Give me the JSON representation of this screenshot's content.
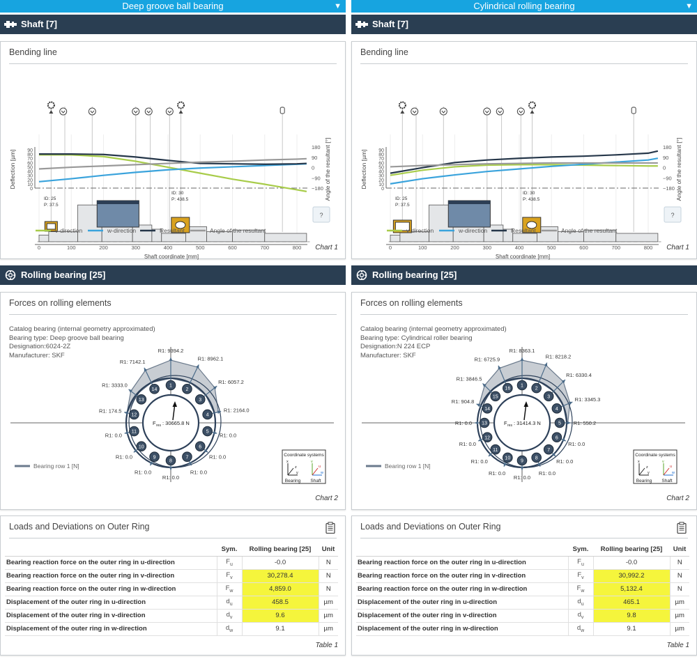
{
  "columns": [
    {
      "top_title": "Deep groove ball bearing",
      "shaft_header": "Shaft [7]",
      "bending": {
        "title": "Bending line",
        "caption": "Chart 1",
        "chart_data": {
          "type": "line",
          "title": "Bending line",
          "xlabel": "Shaft coordinate [mm]",
          "ylabel": "Deflection [µm]",
          "y2label": "Angle of the resultant [°]",
          "xlim": [
            0,
            850
          ],
          "x_ticks": [
            "0",
            "100",
            "200",
            "300",
            "400",
            "500",
            "600",
            "700",
            "800"
          ],
          "y_ticks": [
            "0",
            "10",
            "20",
            "30",
            "40",
            "50",
            "60",
            "70",
            "80",
            "90"
          ],
          "y2_ticks": [
            "180",
            "90",
            "0",
            "−90",
            "−180"
          ],
          "x": [
            0,
            100,
            200,
            300,
            400,
            500,
            600,
            700,
            800,
            830
          ],
          "series": [
            {
              "name": "v-direction",
              "color": "#a8cc4a",
              "values": [
                78,
                78,
                74,
                63,
                49,
                35,
                21,
                9,
                -4,
                -8
              ]
            },
            {
              "name": "w-direction",
              "color": "#3aa3dc",
              "values": [
                15,
                22,
                30,
                37,
                43,
                47,
                50,
                53,
                56,
                57
              ]
            },
            {
              "name": "Resultant",
              "color": "#26374a",
              "values": [
                80,
                80,
                79,
                73,
                65,
                58,
                57,
                56,
                57,
                58
              ]
            },
            {
              "name": "Angle of the resultant",
              "color": "#999999",
              "values": [
                45,
                49,
                52,
                55,
                58,
                61,
                63,
                66,
                68,
                69
              ]
            }
          ],
          "annotations": [
            {
              "label": "ID: 25",
              "label2": "P: 37.5"
            },
            {
              "label": "ID: 30",
              "label2": "P: 438.5"
            }
          ],
          "help_label": "?"
        }
      },
      "bearing_header": "Rolling bearing [25]",
      "forces": {
        "title": "Forces on rolling elements",
        "caption": "Chart 2",
        "catalog": "Catalog bearing (internal geometry approximated)",
        "type_line": "Bearing type: Deep groove ball bearing",
        "designation": "Designation:6024-2Z",
        "manufacturer": "Manufacturer: SKF",
        "legend": "Bearing row 1 [N]",
        "fres": "30665.8 N",
        "coord_title": "Coordinate systems",
        "coord_bearing": "Bearing",
        "coord_shaft": "Shaft",
        "chart_data": {
          "type": "polar-bar",
          "title": "Forces on rolling elements",
          "n_elements": 14,
          "element_labels": [
            "1",
            "2",
            "3",
            "4",
            "5",
            "6",
            "7",
            "8",
            "9",
            "10",
            "11",
            "12",
            "13",
            "14"
          ],
          "R1": [
            9394.2,
            8962.1,
            6057.2,
            2164.0,
            0.0,
            0.0,
            0.0,
            0.0,
            0.0,
            0.0,
            0.0,
            174.5,
            3333.0,
            7142.1
          ],
          "labels": [
            "R1: 9394.2",
            "R1: 8962.1",
            "R1: 6057.2",
            "R1: 2164.0",
            "R1: 0.0",
            "R1: 0.0",
            "R1: 0.0",
            "R1: 0.0",
            "R1: 0.0",
            "R1: 0.0",
            "R1: 0.0",
            "R1: 174.5",
            "R1: 3333.0",
            "R1: 7142.1"
          ]
        }
      },
      "loads": {
        "title": "Loads and Deviations on Outer Ring",
        "caption": "Table 1",
        "headers": [
          "Sym.",
          "Rolling bearing [25]",
          "Unit"
        ],
        "rows": [
          {
            "desc": "Bearing reaction force on the outer ring in u-direction",
            "sym": "F",
            "sub": "u",
            "val": "-0.0",
            "unit": "N",
            "hl": false
          },
          {
            "desc": "Bearing reaction force on the outer ring in v-direction",
            "sym": "F",
            "sub": "v",
            "val": "30,278.4",
            "unit": "N",
            "hl": true
          },
          {
            "desc": "Bearing reaction force on the outer ring in w-direction",
            "sym": "F",
            "sub": "w",
            "val": "4,859.0",
            "unit": "N",
            "hl": true
          },
          {
            "desc": "Displacement of the outer ring in u-direction",
            "sym": "d",
            "sub": "u",
            "val": "458.5",
            "unit": "µm",
            "hl": true
          },
          {
            "desc": "Displacement of the outer ring in v-direction",
            "sym": "d",
            "sub": "v",
            "val": "9.6",
            "unit": "µm",
            "hl": true
          },
          {
            "desc": "Displacement of the outer ring in w-direction",
            "sym": "d",
            "sub": "w",
            "val": "9.1",
            "unit": "µm",
            "hl": false
          }
        ]
      }
    },
    {
      "top_title": "Cylindrical rolling bearing",
      "shaft_header": "Shaft [7]",
      "bending": {
        "title": "Bending line",
        "caption": "Chart 1",
        "chart_data": {
          "type": "line",
          "title": "Bending line",
          "xlabel": "Shaft coordinate [mm]",
          "ylabel": "Deflection [µm]",
          "y2label": "Angle of the resultant [°]",
          "xlim": [
            0,
            850
          ],
          "x_ticks": [
            "0",
            "100",
            "200",
            "300",
            "400",
            "500",
            "600",
            "700",
            "800"
          ],
          "y_ticks": [
            "0",
            "10",
            "20",
            "30",
            "40",
            "50",
            "60",
            "70",
            "80",
            "90"
          ],
          "y2_ticks": [
            "180",
            "90",
            "0",
            "−90",
            "−180"
          ],
          "x": [
            0,
            100,
            200,
            300,
            400,
            500,
            600,
            700,
            800,
            830
          ],
          "series": [
            {
              "name": "v-direction",
              "color": "#a8cc4a",
              "values": [
                30,
                42,
                50,
                54,
                55,
                55,
                54,
                53,
                52,
                52
              ]
            },
            {
              "name": "w-direction",
              "color": "#3aa3dc",
              "values": [
                10,
                22,
                31,
                39,
                45,
                51,
                56,
                61,
                66,
                70
              ]
            },
            {
              "name": "Resultant",
              "color": "#26374a",
              "values": [
                35,
                48,
                60,
                66,
                70,
                73,
                75,
                78,
                82,
                87
              ]
            },
            {
              "name": "Angle of the resultant",
              "color": "#999999",
              "values": [
                50,
                53,
                55,
                57,
                58,
                59,
                59,
                59,
                59,
                59
              ]
            }
          ],
          "annotations": [
            {
              "label": "ID: 25",
              "label2": "P: 37.5"
            },
            {
              "label": "ID: 30",
              "label2": "P: 438.5"
            }
          ],
          "help_label": "?"
        }
      },
      "bearing_header": "Rolling bearing [25]",
      "forces": {
        "title": "Forces on rolling elements",
        "caption": "Chart 2",
        "catalog": "Catalog bearing (internal geometry approximated)",
        "type_line": "Bearing type: Cylindrical roller bearing",
        "designation": "Designation:N 224 ECP",
        "manufacturer": "Manufacturer: SKF",
        "legend": "Bearing row 1 [N]",
        "fres": "31414.3 N",
        "coord_title": "Coordinate systems",
        "coord_bearing": "Bearing",
        "coord_shaft": "Shaft",
        "chart_data": {
          "type": "polar-bar",
          "title": "Forces on rolling elements",
          "n_elements": 16,
          "element_labels": [
            "1",
            "2",
            "3",
            "4",
            "5",
            "6",
            "7",
            "8",
            "9",
            "10",
            "11",
            "12",
            "13",
            "14",
            "15",
            "16"
          ],
          "R1": [
            8363.1,
            8218.2,
            6330.4,
            3345.3,
            550.2,
            0.0,
            0.0,
            0.0,
            0.0,
            0.0,
            0.0,
            0.0,
            0.0,
            904.8,
            3846.5,
            6725.9
          ],
          "labels": [
            "R1: 8363.1",
            "R1: 8218.2",
            "R1: 6330.4",
            "R1: 3345.3",
            "R1: 550.2",
            "R1: 0.0",
            "R1: 0.0",
            "R1: 0.0",
            "R1: 0.0",
            "R1: 0.0",
            "R1: 0.0",
            "R1: 0.0",
            "R1: 0.0",
            "R1: 904.8",
            "R1: 3846.5",
            "R1: 6725.9"
          ]
        }
      },
      "loads": {
        "title": "Loads and Deviations on Outer Ring",
        "caption": "Table 1",
        "headers": [
          "Sym.",
          "Rolling bearing [25]",
          "Unit"
        ],
        "rows": [
          {
            "desc": "Bearing reaction force on the outer ring in u-direction",
            "sym": "F",
            "sub": "u",
            "val": "-0.0",
            "unit": "N",
            "hl": false
          },
          {
            "desc": "Bearing reaction force on the outer ring in v-direction",
            "sym": "F",
            "sub": "v",
            "val": "30,992.2",
            "unit": "N",
            "hl": true
          },
          {
            "desc": "Bearing reaction force on the outer ring in w-direction",
            "sym": "F",
            "sub": "w",
            "val": "5,132.4",
            "unit": "N",
            "hl": true
          },
          {
            "desc": "Displacement of the outer ring in u-direction",
            "sym": "d",
            "sub": "u",
            "val": "465.1",
            "unit": "µm",
            "hl": true
          },
          {
            "desc": "Displacement of the outer ring in v-direction",
            "sym": "d",
            "sub": "v",
            "val": "9.8",
            "unit": "µm",
            "hl": true
          },
          {
            "desc": "Displacement of the outer ring in w-direction",
            "sym": "d",
            "sub": "w",
            "val": "9.1",
            "unit": "µm",
            "hl": false
          }
        ]
      }
    }
  ]
}
